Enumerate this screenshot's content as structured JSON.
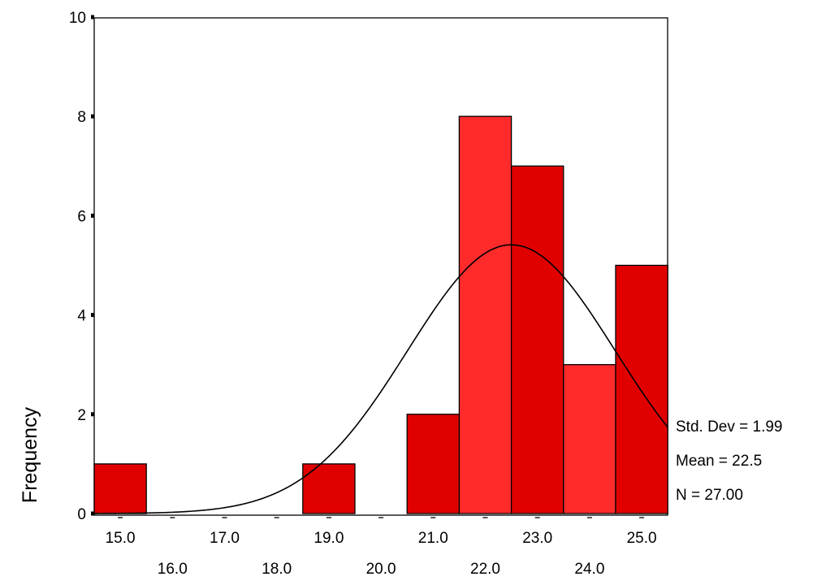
{
  "chart_data": {
    "type": "histogram",
    "title": "",
    "xlabel": "",
    "ylabel": "Frequency",
    "bin_width": 1.0,
    "categories": [
      "15.0",
      "16.0",
      "17.0",
      "18.0",
      "19.0",
      "20.0",
      "21.0",
      "22.0",
      "23.0",
      "24.0",
      "25.0"
    ],
    "values": [
      1,
      0,
      0,
      0,
      1,
      0,
      2,
      8,
      7,
      3,
      5
    ],
    "ylim": [
      0,
      10
    ],
    "y_ticks": [
      "0",
      "2",
      "4",
      "6",
      "8",
      "10"
    ],
    "x_ticks_upper": [
      "15.0",
      "17.0",
      "19.0",
      "21.0",
      "23.0",
      "25.0"
    ],
    "x_ticks_lower": [
      "16.0",
      "18.0",
      "20.0",
      "22.0",
      "24.0"
    ],
    "normal_curve": {
      "mean": 22.5,
      "std_dev": 1.99,
      "n": 27
    },
    "stats": {
      "std_dev": "Std. Dev = 1.99",
      "mean": "Mean = 22.5",
      "n": "N = 27.00"
    },
    "colors": {
      "bar_odd": "#e00000",
      "bar_even": "#ff2a2a",
      "bar_edge": "#000000",
      "curve": "#000000"
    },
    "grid": false,
    "legend": "none"
  }
}
